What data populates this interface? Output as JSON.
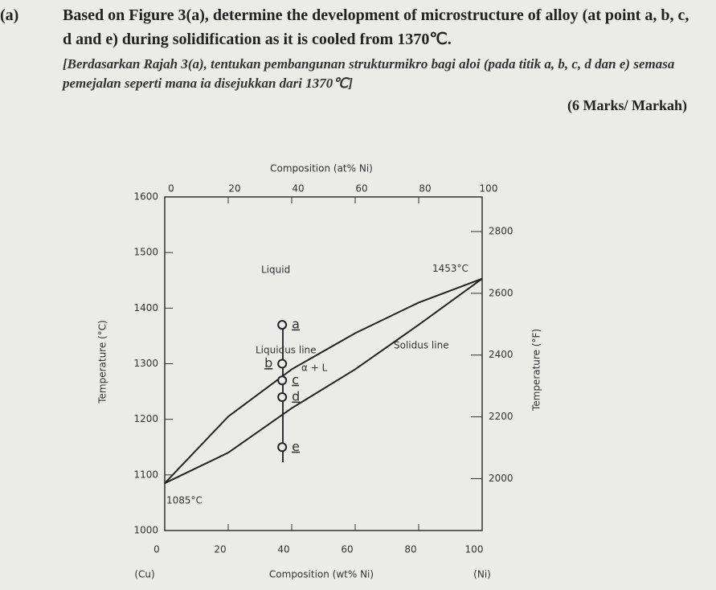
{
  "question": {
    "label": "(a)",
    "text": "Based on Figure 3(a), determine the development of microstructure of alloy (at point a, b, c, d and e) during solidification as it is cooled from 1370℃.",
    "translation": "[Berdasarkan Rajah 3(a), tentukan pembangunan strukturmikro bagi aloi (pada titik a, b, c, d dan e) semasa pemejalan seperti mana ia disejukkan dari 1370℃]",
    "marks": "(6 Marks/ Markah)"
  },
  "figure": {
    "top_axis_title": "Composition (at% Ni)",
    "bottom_axis_title": "Composition (wt% Ni)",
    "left_axis_title": "Temperature (°C)",
    "right_axis_title": "Temperature (°F)",
    "left_end_label": "(Cu)",
    "right_end_label": "(Ni)",
    "xlim": [
      0,
      100
    ],
    "xticks": [
      0,
      20,
      40,
      60,
      80,
      100
    ],
    "top_xticks": [
      0,
      20,
      40,
      60,
      80,
      100
    ],
    "ylim": [
      1000,
      1600
    ],
    "yticks": [
      1000,
      1100,
      1200,
      1300,
      1400,
      1500,
      1600
    ],
    "y2lim": [
      1832,
      2912
    ],
    "y2ticks": [
      2000,
      2200,
      2400,
      2600,
      2800
    ],
    "liquidus": {
      "name": "Liquidus line",
      "x": [
        0,
        20,
        40,
        60,
        80,
        100
      ],
      "y": [
        1085,
        1205,
        1290,
        1355,
        1410,
        1453
      ]
    },
    "solidus": {
      "name": "Solidus line",
      "x": [
        0,
        20,
        40,
        60,
        80,
        100
      ],
      "y": [
        1085,
        1140,
        1220,
        1290,
        1370,
        1453
      ]
    },
    "region_labels": [
      "Liquid",
      "α + L"
    ],
    "melting_points": [
      {
        "label": "1085°C",
        "x": 0,
        "y": 1085
      },
      {
        "label": "1453°C",
        "x": 100,
        "y": 1453
      }
    ],
    "points": [
      {
        "label": "a",
        "x": 37,
        "y": 1370
      },
      {
        "label": "b",
        "x": 37,
        "y": 1300
      },
      {
        "label": "c",
        "x": 37,
        "y": 1270
      },
      {
        "label": "d",
        "x": 37,
        "y": 1240
      },
      {
        "label": "e",
        "x": 37,
        "y": 1150
      }
    ]
  }
}
